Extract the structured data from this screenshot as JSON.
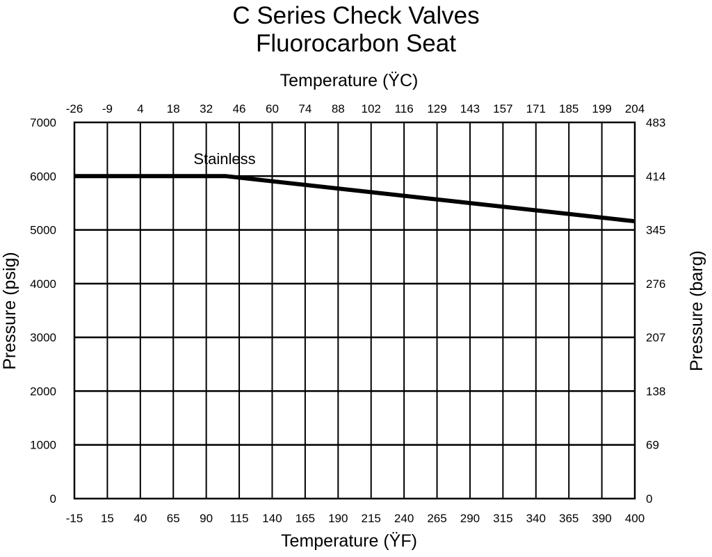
{
  "chart_data": {
    "type": "line",
    "title": "C Series Check Valves",
    "subtitle": "Fluorocarbon Seat",
    "xlabel": "Temperature (ŸF)",
    "x2label": "Temperature (ŸC)",
    "ylabel": "Pressure (psig)",
    "y2label": "Pressure (barg)",
    "xlim": [
      -15,
      400
    ],
    "ylim": [
      0,
      7000
    ],
    "grid": true,
    "x_ticks": [
      "-15",
      "15",
      "40",
      "65",
      "90",
      "115",
      "140",
      "165",
      "190",
      "215",
      "240",
      "265",
      "290",
      "315",
      "340",
      "365",
      "390",
      "400"
    ],
    "x2_ticks": [
      "-26",
      "-9",
      "4",
      "18",
      "32",
      "46",
      "60",
      "74",
      "88",
      "102",
      "116",
      "129",
      "143",
      "157",
      "171",
      "185",
      "199",
      "204"
    ],
    "y_ticks": [
      "0",
      "1000",
      "2000",
      "3000",
      "4000",
      "5000",
      "6000",
      "7000"
    ],
    "y2_ticks": [
      "0",
      "69",
      "138",
      "207",
      "276",
      "345",
      "414",
      "483"
    ],
    "series": [
      {
        "name": "Stainless",
        "x": [
          -15,
          100,
          400
        ],
        "y": [
          6000,
          6000,
          5160
        ]
      }
    ]
  }
}
